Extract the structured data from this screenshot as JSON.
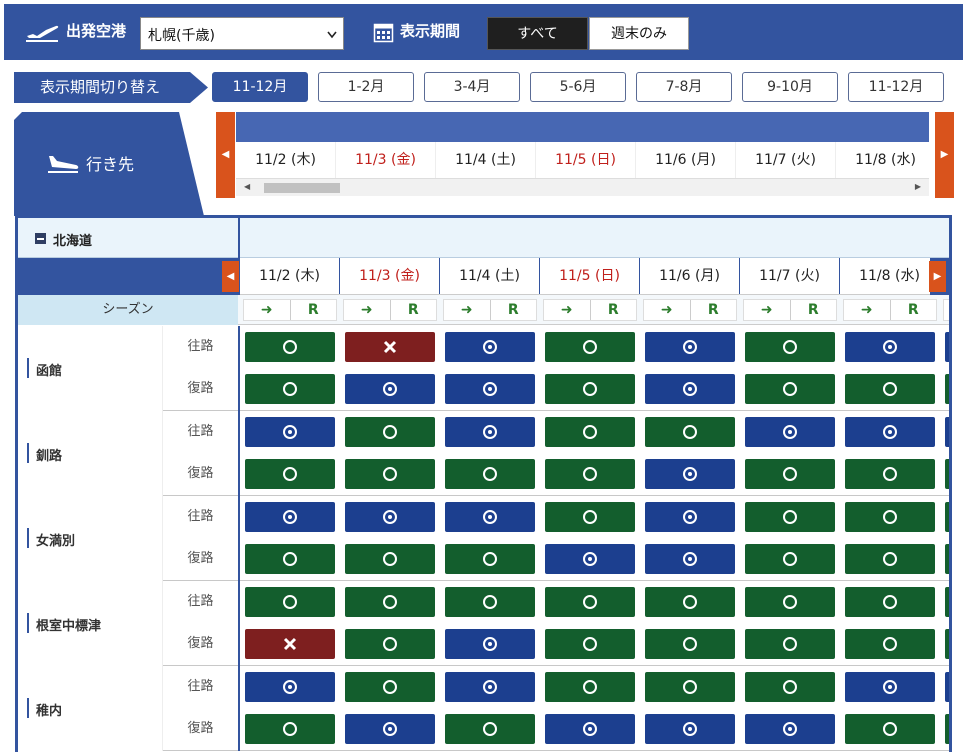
{
  "header": {
    "departure_label": "出発空港",
    "airport_value": "札幌(千歳)",
    "period_label": "表示期間",
    "toggle_all": "すべて",
    "toggle_weekend": "週末のみ"
  },
  "switcher": {
    "label": "表示期間切り替え",
    "months": [
      "11-12月",
      "1-2月",
      "3-4月",
      "5-6月",
      "7-8月",
      "9-10月",
      "11-12月"
    ]
  },
  "destination_tab": {
    "label": "行き先"
  },
  "dates": [
    {
      "text": "11/2 (木)",
      "color": "#222222"
    },
    {
      "text": "11/3 (金)",
      "color": "#c0201c"
    },
    {
      "text": "11/4 (土)",
      "color": "#222222"
    },
    {
      "text": "11/5 (日)",
      "color": "#c0201c"
    },
    {
      "text": "11/6 (月)",
      "color": "#222222"
    },
    {
      "text": "11/7 (火)",
      "color": "#222222"
    },
    {
      "text": "11/8 (水)",
      "color": "#222222"
    }
  ],
  "region": {
    "name": "北海道"
  },
  "season": {
    "label": "シーズン",
    "arrow": "➜",
    "letter": "R"
  },
  "directions": {
    "outbound": "往路",
    "return": "復路"
  },
  "routes": [
    {
      "city": "函館",
      "outbound": [
        "green-circle",
        "red-cross",
        "blue-dot",
        "green-circle",
        "blue-dot",
        "green-circle",
        "blue-dot"
      ],
      "return": [
        "green-circle",
        "blue-dot",
        "blue-dot",
        "green-circle",
        "blue-dot",
        "green-circle",
        "green-circle"
      ]
    },
    {
      "city": "釧路",
      "outbound": [
        "blue-dot",
        "green-circle",
        "blue-dot",
        "green-circle",
        "green-circle",
        "blue-dot",
        "blue-dot"
      ],
      "return": [
        "green-circle",
        "green-circle",
        "green-circle",
        "green-circle",
        "blue-dot",
        "green-circle",
        "green-circle"
      ]
    },
    {
      "city": "女満別",
      "outbound": [
        "blue-dot",
        "blue-dot",
        "blue-dot",
        "green-circle",
        "blue-dot",
        "green-circle",
        "green-circle"
      ],
      "return": [
        "green-circle",
        "green-circle",
        "green-circle",
        "blue-dot",
        "blue-dot",
        "green-circle",
        "green-circle"
      ]
    },
    {
      "city": "根室中標津",
      "outbound": [
        "green-circle",
        "green-circle",
        "green-circle",
        "green-circle",
        "green-circle",
        "green-circle",
        "green-circle"
      ],
      "return": [
        "red-cross",
        "green-circle",
        "blue-dot",
        "green-circle",
        "green-circle",
        "green-circle",
        "green-circle"
      ]
    },
    {
      "city": "稚内",
      "outbound": [
        "blue-dot",
        "green-circle",
        "blue-dot",
        "green-circle",
        "green-circle",
        "green-circle",
        "blue-dot"
      ],
      "return": [
        "green-circle",
        "blue-dot",
        "green-circle",
        "blue-dot",
        "blue-dot",
        "blue-dot",
        "green-circle"
      ]
    }
  ],
  "colors": {
    "brand_blue": "#33549f",
    "accent_orange": "#d9531c",
    "available_green": "#135e2d",
    "discount_blue": "#1c3f8f",
    "unavailable_red": "#7e1f1f",
    "holiday_red": "#c0201c"
  },
  "icons": {
    "departure": "plane-takeoff-icon",
    "calendar": "calendar-icon",
    "arrival": "plane-landing-icon"
  }
}
